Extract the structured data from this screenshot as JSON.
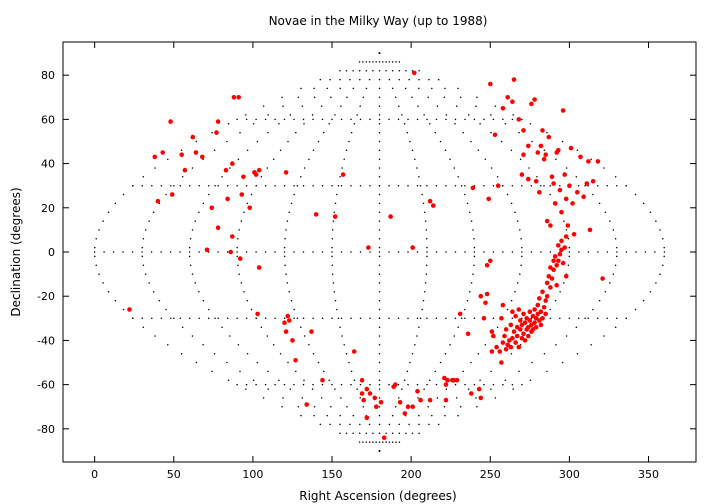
{
  "chart_data": {
    "type": "scatter",
    "title": "Novae in the Milky Way (up to 1988)",
    "xlabel": "Right Ascension (degrees)",
    "ylabel": "Declination (degrees)",
    "xlim": [
      -20,
      380
    ],
    "ylim": [
      -95,
      95
    ],
    "xticks": [
      0,
      50,
      100,
      150,
      200,
      250,
      300,
      350
    ],
    "yticks": [
      -80,
      -60,
      -40,
      -20,
      0,
      20,
      40,
      60,
      80
    ],
    "projection": "sinusoidal-style dotted graticule centered at RA 180",
    "grid": true,
    "legend": "none",
    "marker_color": "#ff0000",
    "series": [
      {
        "points": [
          [
            22,
            -26
          ],
          [
            38,
            43
          ],
          [
            40,
            23
          ],
          [
            43,
            45
          ],
          [
            48,
            59
          ],
          [
            49,
            26
          ],
          [
            55,
            44
          ],
          [
            57,
            37
          ],
          [
            62,
            52
          ],
          [
            64,
            45
          ],
          [
            68,
            43
          ],
          [
            71,
            1
          ],
          [
            74,
            20
          ],
          [
            77,
            54
          ],
          [
            78,
            59
          ],
          [
            78,
            11
          ],
          [
            83,
            37
          ],
          [
            84,
            24
          ],
          [
            86,
            0
          ],
          [
            87,
            40
          ],
          [
            87,
            7
          ],
          [
            88,
            70
          ],
          [
            91,
            70
          ],
          [
            92,
            -3
          ],
          [
            93,
            26
          ],
          [
            94,
            34
          ],
          [
            98,
            20
          ],
          [
            101,
            36
          ],
          [
            101,
            36
          ],
          [
            102,
            35
          ],
          [
            103,
            -28
          ],
          [
            104,
            -7
          ],
          [
            104,
            37
          ],
          [
            121,
            36
          ],
          [
            120,
            -32
          ],
          [
            121,
            -36
          ],
          [
            122,
            -29
          ],
          [
            123,
            -31
          ],
          [
            125,
            -40
          ],
          [
            127,
            -49
          ],
          [
            134,
            -69
          ],
          [
            137,
            -36
          ],
          [
            140,
            17
          ],
          [
            144,
            -58
          ],
          [
            152,
            16
          ],
          [
            157,
            35
          ],
          [
            164,
            -45
          ],
          [
            169,
            -58
          ],
          [
            169,
            -64
          ],
          [
            170,
            -67
          ],
          [
            172,
            -62
          ],
          [
            172,
            -75
          ],
          [
            173,
            2
          ],
          [
            174,
            -64
          ],
          [
            177,
            -66
          ],
          [
            178,
            -70
          ],
          [
            181,
            -68
          ],
          [
            183,
            -84
          ],
          [
            187,
            16
          ],
          [
            189,
            -61
          ],
          [
            190,
            -60
          ],
          [
            193,
            -68
          ],
          [
            196,
            -73
          ],
          [
            198,
            -70
          ],
          [
            201,
            -70
          ],
          [
            201,
            2
          ],
          [
            202,
            81
          ],
          [
            204,
            -63
          ],
          [
            206,
            -67
          ],
          [
            212,
            -67
          ],
          [
            212,
            23
          ],
          [
            214,
            21
          ],
          [
            221,
            -57
          ],
          [
            222,
            -60
          ],
          [
            222,
            -67
          ],
          [
            223,
            -58
          ],
          [
            226,
            -58
          ],
          [
            227,
            -58
          ],
          [
            229,
            -58
          ],
          [
            231,
            -28
          ],
          [
            236,
            -37
          ],
          [
            238,
            -64
          ],
          [
            239,
            29
          ],
          [
            243,
            -62
          ],
          [
            244,
            -66
          ],
          [
            244,
            -20
          ],
          [
            246,
            -30
          ],
          [
            247,
            -23
          ],
          [
            248,
            -19
          ],
          [
            248,
            -6
          ],
          [
            249,
            24
          ],
          [
            250,
            -4
          ],
          [
            251,
            -36
          ],
          [
            251,
            -45
          ],
          [
            252,
            -38
          ],
          [
            253,
            53
          ],
          [
            254,
            -43
          ],
          [
            256,
            -45
          ],
          [
            257,
            -50
          ],
          [
            257,
            -30
          ],
          [
            258,
            -41
          ],
          [
            258,
            -24
          ],
          [
            259,
            -38
          ],
          [
            260,
            -44
          ],
          [
            260,
            -35
          ],
          [
            261,
            -42
          ],
          [
            262,
            -40
          ],
          [
            263,
            -43
          ],
          [
            263,
            -33
          ],
          [
            264,
            -39
          ],
          [
            264,
            -27
          ],
          [
            265,
            -36
          ],
          [
            266,
            -41
          ],
          [
            266,
            -29
          ],
          [
            267,
            -38
          ],
          [
            267,
            -34
          ],
          [
            268,
            -43
          ],
          [
            268,
            -26
          ],
          [
            269,
            -35
          ],
          [
            269,
            -31
          ],
          [
            270,
            -39
          ],
          [
            270,
            -33
          ],
          [
            271,
            -37
          ],
          [
            271,
            -28
          ],
          [
            272,
            -32
          ],
          [
            272,
            -40
          ],
          [
            273,
            -35
          ],
          [
            273,
            -30
          ],
          [
            274,
            -34
          ],
          [
            274,
            -38
          ],
          [
            275,
            -31
          ],
          [
            275,
            -27
          ],
          [
            276,
            -36
          ],
          [
            276,
            -33
          ],
          [
            277,
            -29
          ],
          [
            277,
            -35
          ],
          [
            278,
            -32
          ],
          [
            278,
            -26
          ],
          [
            279,
            -30
          ],
          [
            279,
            -34
          ],
          [
            280,
            -24
          ],
          [
            280,
            -28
          ],
          [
            281,
            -31
          ],
          [
            281,
            -21
          ],
          [
            282,
            -27
          ],
          [
            282,
            -33
          ],
          [
            283,
            -30
          ],
          [
            283,
            -18
          ],
          [
            284,
            -25
          ],
          [
            285,
            -22
          ],
          [
            285,
            -28
          ],
          [
            286,
            -14
          ],
          [
            286,
            -20
          ],
          [
            287,
            -11
          ],
          [
            288,
            -16
          ],
          [
            288,
            -7
          ],
          [
            289,
            -12
          ],
          [
            290,
            -4
          ],
          [
            290,
            -8
          ],
          [
            291,
            -2
          ],
          [
            292,
            -6
          ],
          [
            292,
            -15
          ],
          [
            293,
            -4
          ],
          [
            293,
            3
          ],
          [
            294,
            -1
          ],
          [
            295,
            5
          ],
          [
            295,
            1
          ],
          [
            296,
            -5
          ],
          [
            297,
            2
          ],
          [
            298,
            7
          ],
          [
            298,
            -11
          ],
          [
            270,
            35
          ],
          [
            271,
            44
          ],
          [
            274,
            33
          ],
          [
            276,
            67
          ],
          [
            278,
            69
          ],
          [
            279,
            32
          ],
          [
            280,
            45
          ],
          [
            281,
            27
          ],
          [
            282,
            48
          ],
          [
            283,
            55
          ],
          [
            284,
            42
          ],
          [
            285,
            44
          ],
          [
            286,
            14
          ],
          [
            287,
            52
          ],
          [
            288,
            12
          ],
          [
            289,
            34
          ],
          [
            290,
            31
          ],
          [
            291,
            22
          ],
          [
            292,
            45
          ],
          [
            293,
            46
          ],
          [
            294,
            28
          ],
          [
            295,
            18
          ],
          [
            296,
            64
          ],
          [
            297,
            35
          ],
          [
            298,
            24
          ],
          [
            299,
            12
          ],
          [
            300,
            30
          ],
          [
            301,
            47
          ],
          [
            302,
            22
          ],
          [
            303,
            8
          ],
          [
            305,
            27
          ],
          [
            307,
            43
          ],
          [
            309,
            25
          ],
          [
            311,
            31
          ],
          [
            312,
            41
          ],
          [
            313,
            10
          ],
          [
            315,
            32
          ],
          [
            318,
            41
          ],
          [
            321,
            -12
          ],
          [
            250,
            76
          ],
          [
            255,
            30
          ],
          [
            258,
            65
          ],
          [
            261,
            70
          ],
          [
            264,
            68
          ],
          [
            265,
            78
          ],
          [
            268,
            60
          ],
          [
            271,
            55
          ],
          [
            274,
            48
          ]
        ]
      }
    ]
  }
}
